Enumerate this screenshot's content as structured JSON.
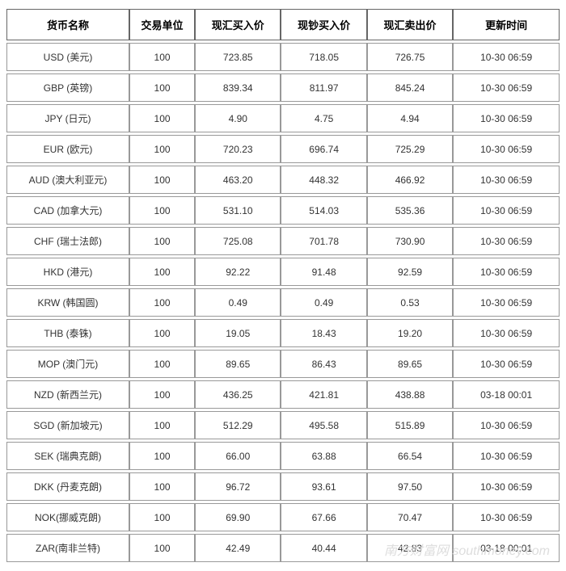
{
  "table": {
    "columns": [
      "货币名称",
      "交易单位",
      "现汇买入价",
      "现钞买入价",
      "现汇卖出价",
      "更新时间"
    ],
    "rows": [
      [
        "USD (美元)",
        "100",
        "723.85",
        "718.05",
        "726.75",
        "10-30 06:59"
      ],
      [
        "GBP (英镑)",
        "100",
        "839.34",
        "811.97",
        "845.24",
        "10-30 06:59"
      ],
      [
        "JPY (日元)",
        "100",
        "4.90",
        "4.75",
        "4.94",
        "10-30 06:59"
      ],
      [
        "EUR (欧元)",
        "100",
        "720.23",
        "696.74",
        "725.29",
        "10-30 06:59"
      ],
      [
        "AUD (澳大利亚元)",
        "100",
        "463.20",
        "448.32",
        "466.92",
        "10-30 06:59"
      ],
      [
        "CAD (加拿大元)",
        "100",
        "531.10",
        "514.03",
        "535.36",
        "10-30 06:59"
      ],
      [
        "CHF (瑞士法郎)",
        "100",
        "725.08",
        "701.78",
        "730.90",
        "10-30 06:59"
      ],
      [
        "HKD (港元)",
        "100",
        "92.22",
        "91.48",
        "92.59",
        "10-30 06:59"
      ],
      [
        "KRW (韩国圆)",
        "100",
        "0.49",
        "0.49",
        "0.53",
        "10-30 06:59"
      ],
      [
        "THB (泰铢)",
        "100",
        "19.05",
        "18.43",
        "19.20",
        "10-30 06:59"
      ],
      [
        "MOP (澳门元)",
        "100",
        "89.65",
        "86.43",
        "89.65",
        "10-30 06:59"
      ],
      [
        "NZD (新西兰元)",
        "100",
        "436.25",
        "421.81",
        "438.88",
        "03-18 00:01"
      ],
      [
        "SGD (新加坡元)",
        "100",
        "512.29",
        "495.58",
        "515.89",
        "10-30 06:59"
      ],
      [
        "SEK (瑞典克朗)",
        "100",
        "66.00",
        "63.88",
        "66.54",
        "10-30 06:59"
      ],
      [
        "DKK (丹麦克朗)",
        "100",
        "96.72",
        "93.61",
        "97.50",
        "10-30 06:59"
      ],
      [
        "NOK(挪威克朗)",
        "100",
        "69.90",
        "67.66",
        "70.47",
        "10-30 06:59"
      ],
      [
        "ZAR(南非兰特)",
        "100",
        "42.49",
        "40.44",
        "42.83",
        "03-18 00:01"
      ]
    ],
    "header_border_color": "#666666",
    "cell_border_color": "#999999",
    "background_color": "#ffffff",
    "header_fontsize": 13,
    "cell_fontsize": 12,
    "header_text_color": "#000000",
    "cell_text_color": "#333333"
  },
  "watermark": {
    "text": "南方财富网 southmoney.com",
    "color": "#dddddd"
  }
}
